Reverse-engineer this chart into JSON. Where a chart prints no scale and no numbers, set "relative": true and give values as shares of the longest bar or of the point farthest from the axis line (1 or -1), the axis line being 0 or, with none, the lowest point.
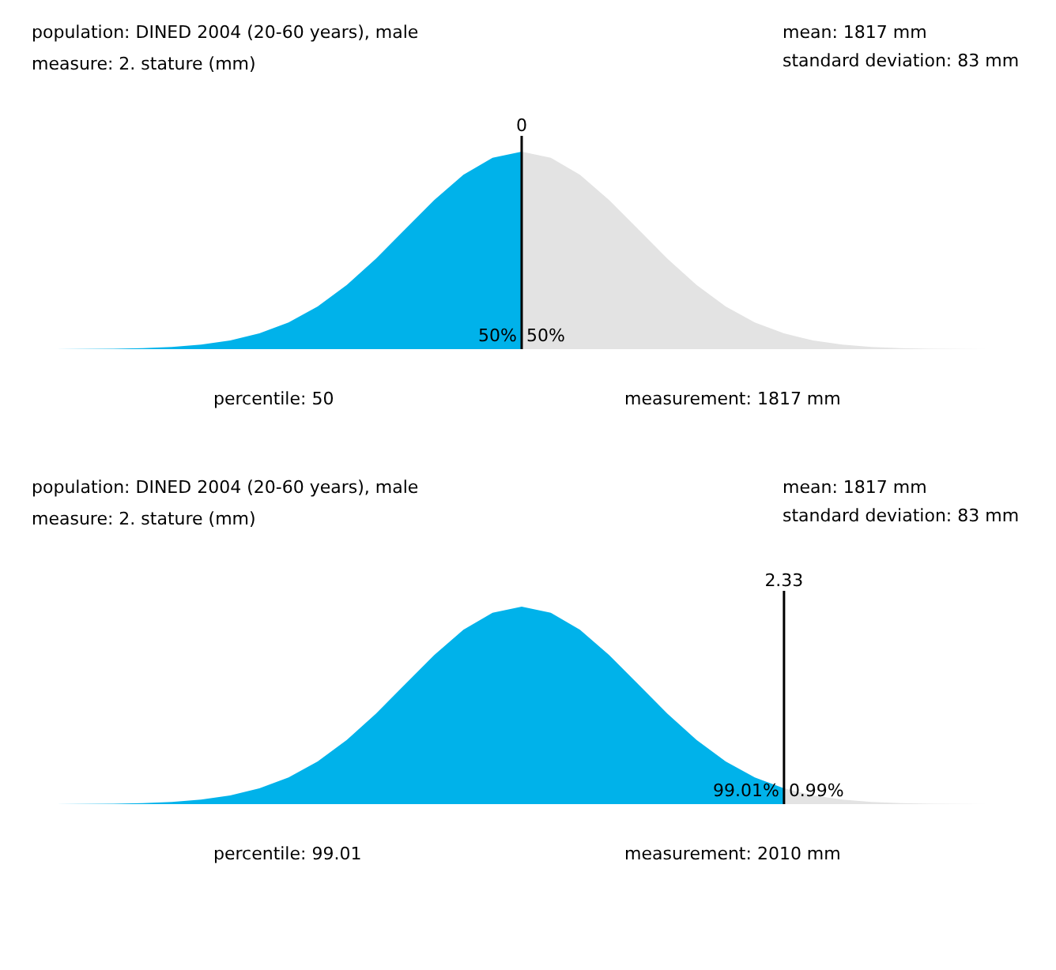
{
  "chart_data": [
    {
      "type": "area",
      "relative": true,
      "tick_labels": false,
      "grid": false,
      "categories": [
        null,
        null,
        null,
        null,
        null,
        null,
        null,
        null,
        null,
        null,
        null,
        null,
        null,
        null,
        null,
        null,
        null,
        null,
        null,
        null,
        null,
        null,
        null,
        null,
        null,
        null,
        null,
        null,
        null,
        null,
        null,
        null,
        null
      ],
      "series": [
        {
          "color": "#00b2ea",
          "values": [
            0.0003,
            0.0009,
            0.0022,
            0.0051,
            0.011,
            0.023,
            0.044,
            0.08,
            0.135,
            0.216,
            0.325,
            0.458,
            0.607,
            0.755,
            0.883,
            0.969,
            1,
            null,
            null,
            null,
            null,
            null,
            null,
            null,
            null,
            null,
            null,
            null,
            null,
            null,
            null,
            null,
            null
          ]
        },
        {
          "color": "#e3e3e3",
          "values": [
            null,
            null,
            null,
            null,
            null,
            null,
            null,
            null,
            null,
            null,
            null,
            null,
            null,
            null,
            null,
            null,
            1,
            0.969,
            0.883,
            0.755,
            0.607,
            0.458,
            0.325,
            0.216,
            0.135,
            0.08,
            0.044,
            0.023,
            0.011,
            0.0051,
            0.0022,
            0.0009,
            0.0003
          ]
        }
      ],
      "annotations": [
        "population:  DINED 2004 (20-60 years), male",
        "measure:     2. stature (mm)",
        "mean: 1817 mm",
        "standard deviation: 83 mm",
        "50%",
        "50%",
        "percentile: 50",
        "measurement: 1817 mm",
        "0"
      ]
    },
    {
      "type": "area",
      "relative": true,
      "tick_labels": false,
      "grid": false,
      "categories": [
        null,
        null,
        null,
        null,
        null,
        null,
        null,
        null,
        null,
        null,
        null,
        null,
        null,
        null,
        null,
        null,
        null,
        null,
        null,
        null,
        null,
        null,
        null,
        null,
        null,
        null,
        null,
        null,
        null,
        null,
        null,
        null,
        null
      ],
      "series": [
        {
          "color": "#00b2ea",
          "values": [
            0.0003,
            0.0009,
            0.0022,
            0.0051,
            0.011,
            0.023,
            0.044,
            0.08,
            0.135,
            0.216,
            0.325,
            0.458,
            0.607,
            0.755,
            0.883,
            0.969,
            1,
            0.969,
            0.883,
            0.755,
            0.607,
            0.458,
            0.325,
            0.216,
            0.135,
            0.08,
            null,
            null,
            null,
            null,
            null,
            null,
            null
          ]
        },
        {
          "color": "#e3e3e3",
          "values": [
            null,
            null,
            null,
            null,
            null,
            null,
            null,
            null,
            null,
            null,
            null,
            null,
            null,
            null,
            null,
            null,
            null,
            null,
            null,
            null,
            null,
            null,
            null,
            null,
            null,
            0.08,
            0.044,
            0.023,
            0.011,
            0.0051,
            0.0022,
            0.0009,
            0.0003
          ]
        }
      ],
      "annotations": [
        "population:  DINED 2004 (20-60 years), male",
        "measure:     2. stature (mm)",
        "mean: 1817 mm",
        "standard deviation: 83 mm",
        "99.01%",
        "0.99%",
        "percentile: 99.01",
        "measurement: 2010 mm",
        "2.33"
      ]
    }
  ]
}
